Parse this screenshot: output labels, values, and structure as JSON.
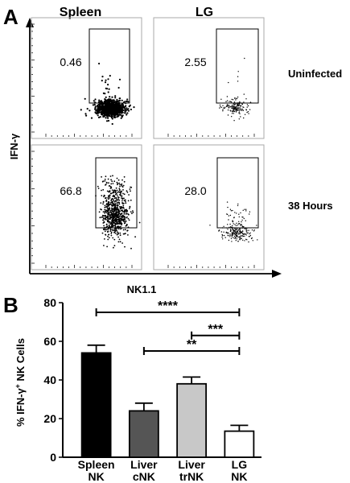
{
  "panel_a": {
    "label": "A",
    "columns": [
      "Spleen",
      "LG"
    ],
    "rows": [
      "Uninfected",
      "38 Hours"
    ],
    "ylabel": "IFN-γ",
    "xlabel": "NK1.1",
    "gate_values": [
      [
        "0.46",
        "2.55"
      ],
      [
        "66.8",
        "28.0"
      ]
    ]
  },
  "panel_b": {
    "label": "B"
  },
  "chart_data": [
    {
      "type": "scatter",
      "panel": "A",
      "columns": [
        "Spleen",
        "LG"
      ],
      "rows": [
        "Uninfected",
        "38 Hours"
      ],
      "xlabel": "NK1.1",
      "ylabel": "IFN-γ",
      "gated_percent": [
        {
          "row": "Uninfected",
          "column": "Spleen",
          "value": 0.46
        },
        {
          "row": "Uninfected",
          "column": "LG",
          "value": 2.55
        },
        {
          "row": "38 Hours",
          "column": "Spleen",
          "value": 66.8
        },
        {
          "row": "38 Hours",
          "column": "LG",
          "value": 28.0
        }
      ]
    },
    {
      "type": "bar",
      "panel": "B",
      "categories": [
        "Spleen NK",
        "Liver cNK",
        "Liver trNK",
        "LG NK"
      ],
      "category_lines": [
        [
          "Spleen",
          "NK"
        ],
        [
          "Liver",
          "cNK"
        ],
        [
          "Liver",
          "trNK"
        ],
        [
          "LG",
          "NK"
        ]
      ],
      "values": [
        54,
        24,
        38,
        13.5
      ],
      "errors": [
        4,
        4,
        3.5,
        3
      ],
      "bar_colors": [
        "#000000",
        "#555555",
        "#c8c8c8",
        "#ffffff"
      ],
      "ylabel": "% IFN-γ+ NK Cells",
      "ylim": [
        0,
        80
      ],
      "yticks": [
        0,
        20,
        40,
        60,
        80
      ],
      "significance": [
        {
          "from": 0,
          "to": 3,
          "label": "****",
          "y": 75
        },
        {
          "from": 2,
          "to": 3,
          "label": "***",
          "y": 63
        },
        {
          "from": 1,
          "to": 3,
          "label": "**",
          "y": 55
        }
      ]
    }
  ]
}
